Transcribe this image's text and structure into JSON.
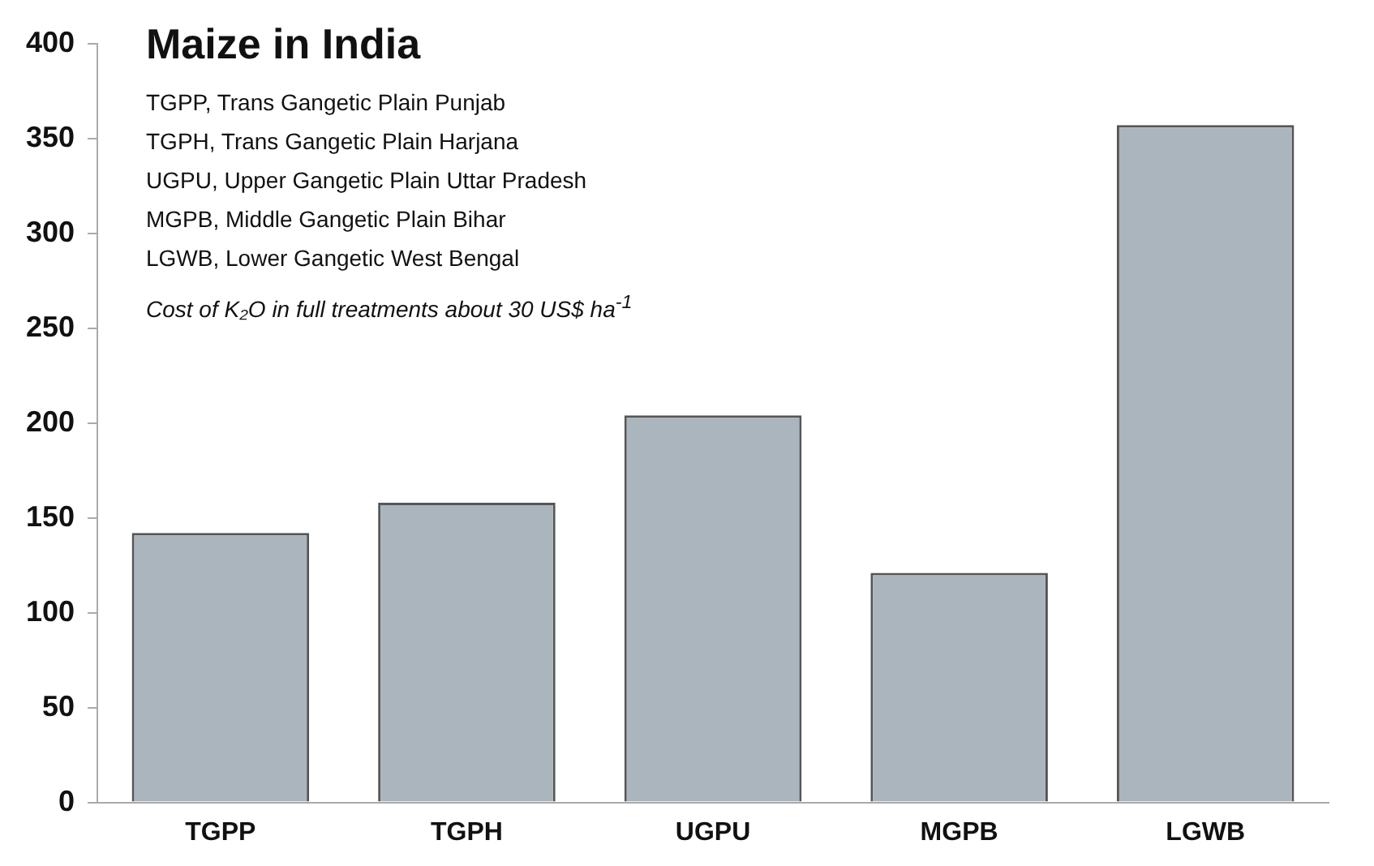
{
  "chart_data": {
    "type": "bar",
    "title": "Maize in India",
    "categories": [
      "TGPP",
      "TGPH",
      "UGPU",
      "MGPB",
      "LGWB"
    ],
    "values": [
      142,
      158,
      204,
      121,
      357
    ],
    "color": "#aab5bd",
    "ylim": [
      0,
      400
    ],
    "yticks": [
      0,
      50,
      100,
      150,
      200,
      250,
      300,
      350,
      400
    ],
    "grid": false,
    "legend": false,
    "annotations": [
      "TGPP, Trans Gangetic Plain Punjab",
      "TGPH, Trans Gangetic Plain Harjana",
      "UGPU, Upper Gangetic Plain Uttar Pradesh",
      "MGPB, Middle Gangetic Plain Bihar",
      "LGWB, Lower Gangetic West Bengal",
      "Cost of K₂O in full treatments about 30 US$ ha$^{-1}$"
    ]
  }
}
